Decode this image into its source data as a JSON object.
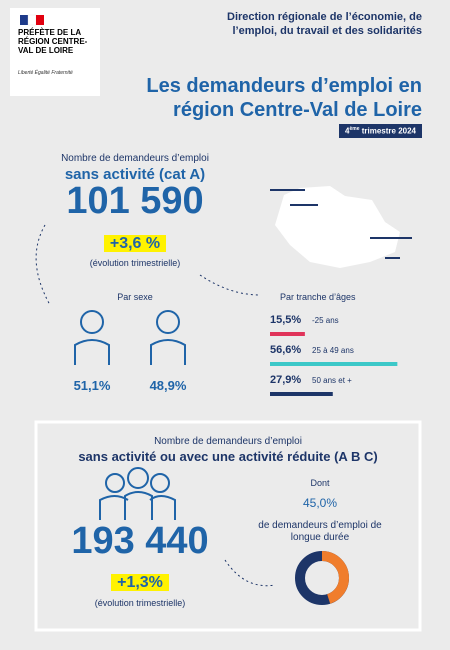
{
  "logo": {
    "title": "PRÉFÈTE DE LA RÉGION CENTRE-VAL DE LOIRE",
    "motto": "Liberté Égalité Fraternité"
  },
  "header": {
    "organization": "Direction régionale de l’économie, de l’emploi, du travail et des solidarités",
    "title": "Les demandeurs d’emploi en région Centre-Val de Loire",
    "period": {
      "number": "4",
      "suffix": "ème",
      "text": " trimestre 2024"
    }
  },
  "cat_a": {
    "label": "Nombre de demandeurs d’emploi",
    "subtitle": "sans activité (cat A)",
    "count": "101 590",
    "evolution": "+3,6 %",
    "evolution_label": "(évolution trimestrielle)",
    "by_sex": {
      "label": "Par sexe",
      "men": "51,1%",
      "women": "48,9%"
    },
    "by_age": {
      "label": "Par tranche d’âges",
      "groups": [
        {
          "value": 15.5,
          "label": "15,5%",
          "range": "-25 ans",
          "color": "#e0345a"
        },
        {
          "value": 56.6,
          "label": "56,6%",
          "range": "25 à 49 ans",
          "color": "#3cc8c8"
        },
        {
          "value": 27.9,
          "label": "27,9%",
          "range": "50 ans et +",
          "color": "#1d3568"
        }
      ]
    }
  },
  "cat_abc": {
    "label": "Nombre de demandeurs d’emploi",
    "subtitle": "sans activité ou avec une activité réduite (A B C)",
    "count": "193 440",
    "evolution": "+1,3%",
    "evolution_label": "(évolution trimestrielle)",
    "long_term": {
      "prefix": "Dont",
      "value": 45,
      "label": "45,0%",
      "text": "de demandeurs d’emploi de longue durée"
    }
  }
}
